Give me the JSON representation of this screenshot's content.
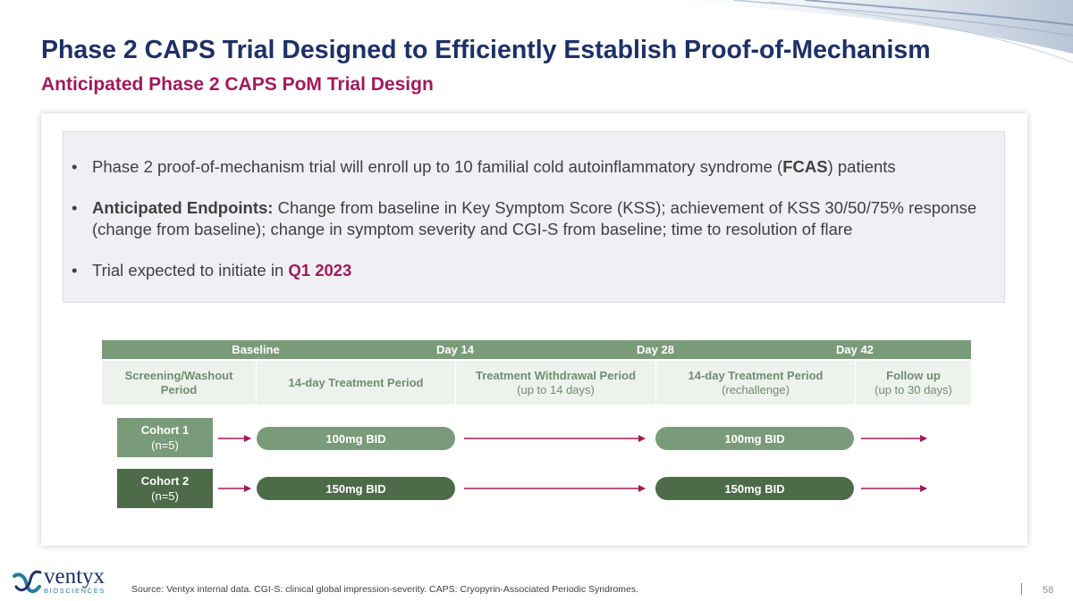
{
  "header": {
    "title": "Phase 2 CAPS Trial Designed to Efficiently Establish Proof-of-Mechanism",
    "subtitle": "Anticipated Phase 2 CAPS PoM Trial Design"
  },
  "bullets": {
    "b1_pre": "Phase 2 proof-of-mechanism trial will enroll up to 10 familial cold autoinflammatory syndrome (",
    "b1_bold": "FCAS",
    "b1_post": ") patients",
    "b2_bold": "Anticipated Endpoints:",
    "b2_text": " Change from baseline in Key Symptom Score (KSS); achievement of KSS 30/50/75% response (change from baseline); change in symptom severity and CGI-S from baseline; time to resolution of flare",
    "b3_pre": "Trial expected to initiate in ",
    "b3_accent": "Q1 2023"
  },
  "timeline": {
    "labels": [
      "Baseline",
      "Day 14",
      "Day 28",
      "Day 42"
    ]
  },
  "periods": [
    {
      "title": "Screening/Washout",
      "sub": "Period"
    },
    {
      "title": "14-day Treatment Period",
      "sub": ""
    },
    {
      "title": "Treatment Withdrawal Period",
      "sub": "(up to 14 days)"
    },
    {
      "title": "14-day Treatment Period",
      "sub": "(rechallenge)"
    },
    {
      "title": "Follow up",
      "sub": "(up to 30 days)"
    }
  ],
  "cohorts": [
    {
      "name": "Cohort 1",
      "n": "(n=5)",
      "dose1": "100mg BID",
      "dose2": "100mg BID"
    },
    {
      "name": "Cohort 2",
      "n": "(n=5)",
      "dose1": "150mg BID",
      "dose2": "150mg BID"
    }
  ],
  "colors": {
    "title": "#1d3068",
    "accent": "#a3195b",
    "green": "#7a9b79",
    "dark_green": "#4d6b49"
  },
  "footer": {
    "source": "Source: Ventyx internal data. CGI-S: clinical global impression-severity. CAPS: Cryopyrin-Associated Periodic Syndromes.",
    "page": "58"
  },
  "logo": {
    "name": "ventyx",
    "tagline": "BIOSCIENCES"
  }
}
